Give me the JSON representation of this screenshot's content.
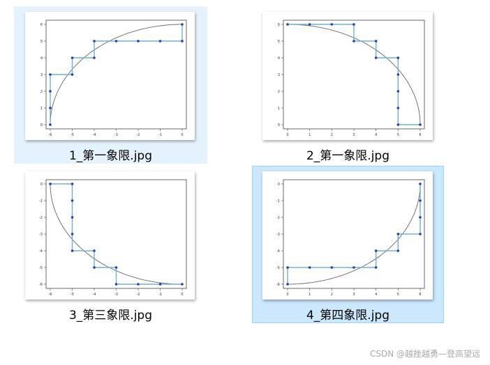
{
  "files": [
    {
      "name": "1_第一象限.jpg",
      "quadrant": 1,
      "state": "hover",
      "plot": {
        "xticks": [
          "-6",
          "-5",
          "-4",
          "-3",
          "-2",
          "-1",
          "0"
        ],
        "yticks": [
          "0",
          "1",
          "2",
          "3",
          "4",
          "5",
          "6"
        ],
        "xlim": [
          -6,
          0
        ],
        "ylim": [
          0,
          6
        ],
        "arc_center": [
          0,
          0
        ],
        "arc_radius": 6,
        "points": [
          [
            -6,
            0
          ],
          [
            -6,
            1
          ],
          [
            -6,
            2
          ],
          [
            -6,
            3
          ],
          [
            -5,
            3
          ],
          [
            -5,
            4
          ],
          [
            -4,
            4
          ],
          [
            -4,
            5
          ],
          [
            -3,
            5
          ],
          [
            -2,
            5
          ],
          [
            -1,
            5
          ],
          [
            0,
            5
          ],
          [
            0,
            6
          ]
        ]
      }
    },
    {
      "name": "2_第一象限.jpg",
      "quadrant": 2,
      "state": "normal",
      "plot": {
        "xticks": [
          "0",
          "1",
          "2",
          "3",
          "4",
          "5",
          "6"
        ],
        "yticks": [
          "0",
          "1",
          "2",
          "3",
          "4",
          "5",
          "6"
        ],
        "xlim": [
          0,
          6
        ],
        "ylim": [
          0,
          6
        ],
        "arc_center": [
          0,
          0
        ],
        "arc_radius": 6,
        "points": [
          [
            0,
            6
          ],
          [
            1,
            6
          ],
          [
            2,
            6
          ],
          [
            3,
            6
          ],
          [
            3,
            5
          ],
          [
            4,
            5
          ],
          [
            4,
            4
          ],
          [
            5,
            4
          ],
          [
            5,
            3
          ],
          [
            5,
            2
          ],
          [
            5,
            1
          ],
          [
            5,
            0
          ],
          [
            6,
            0
          ]
        ]
      }
    },
    {
      "name": "3_第三象限.jpg",
      "quadrant": 3,
      "state": "normal",
      "plot": {
        "xticks": [
          "-6",
          "-5",
          "-4",
          "-3",
          "-2",
          "-1",
          "0"
        ],
        "yticks": [
          "0",
          "-1",
          "-2",
          "-3",
          "-4",
          "-5",
          "-6"
        ],
        "xlim": [
          -6,
          0
        ],
        "ylim": [
          -6,
          0
        ],
        "arc_center": [
          0,
          0
        ],
        "arc_radius": 6,
        "points": [
          [
            -6,
            0
          ],
          [
            -5,
            0
          ],
          [
            -5,
            -1
          ],
          [
            -5,
            -2
          ],
          [
            -5,
            -3
          ],
          [
            -5,
            -4
          ],
          [
            -4,
            -4
          ],
          [
            -4,
            -5
          ],
          [
            -3,
            -5
          ],
          [
            -3,
            -6
          ],
          [
            -2,
            -6
          ],
          [
            -1,
            -6
          ],
          [
            0,
            -6
          ]
        ]
      }
    },
    {
      "name": "4_第四象限.jpg",
      "quadrant": 4,
      "state": "selected",
      "plot": {
        "xticks": [
          "0",
          "1",
          "2",
          "3",
          "4",
          "5",
          "6"
        ],
        "yticks": [
          "0",
          "-1",
          "-2",
          "-3",
          "-4",
          "-5",
          "-6"
        ],
        "xlim": [
          0,
          6
        ],
        "ylim": [
          -6,
          0
        ],
        "arc_center": [
          0,
          0
        ],
        "arc_radius": 6,
        "points": [
          [
            0,
            -6
          ],
          [
            0,
            -5
          ],
          [
            1,
            -5
          ],
          [
            2,
            -5
          ],
          [
            3,
            -5
          ],
          [
            4,
            -5
          ],
          [
            4,
            -4
          ],
          [
            5,
            -4
          ],
          [
            5,
            -3
          ],
          [
            6,
            -3
          ],
          [
            6,
            -2
          ],
          [
            6,
            -1
          ],
          [
            6,
            0
          ]
        ]
      }
    }
  ],
  "watermark": "CSDN @越挫越勇—登高望远",
  "colors": {
    "step_line": "#6fb0d8",
    "marker": "#1f3fbf",
    "arc": "#555555",
    "hover_bg": "#e5f3ff",
    "selected_bg": "#cce8ff",
    "selected_border": "#99d1ff"
  }
}
